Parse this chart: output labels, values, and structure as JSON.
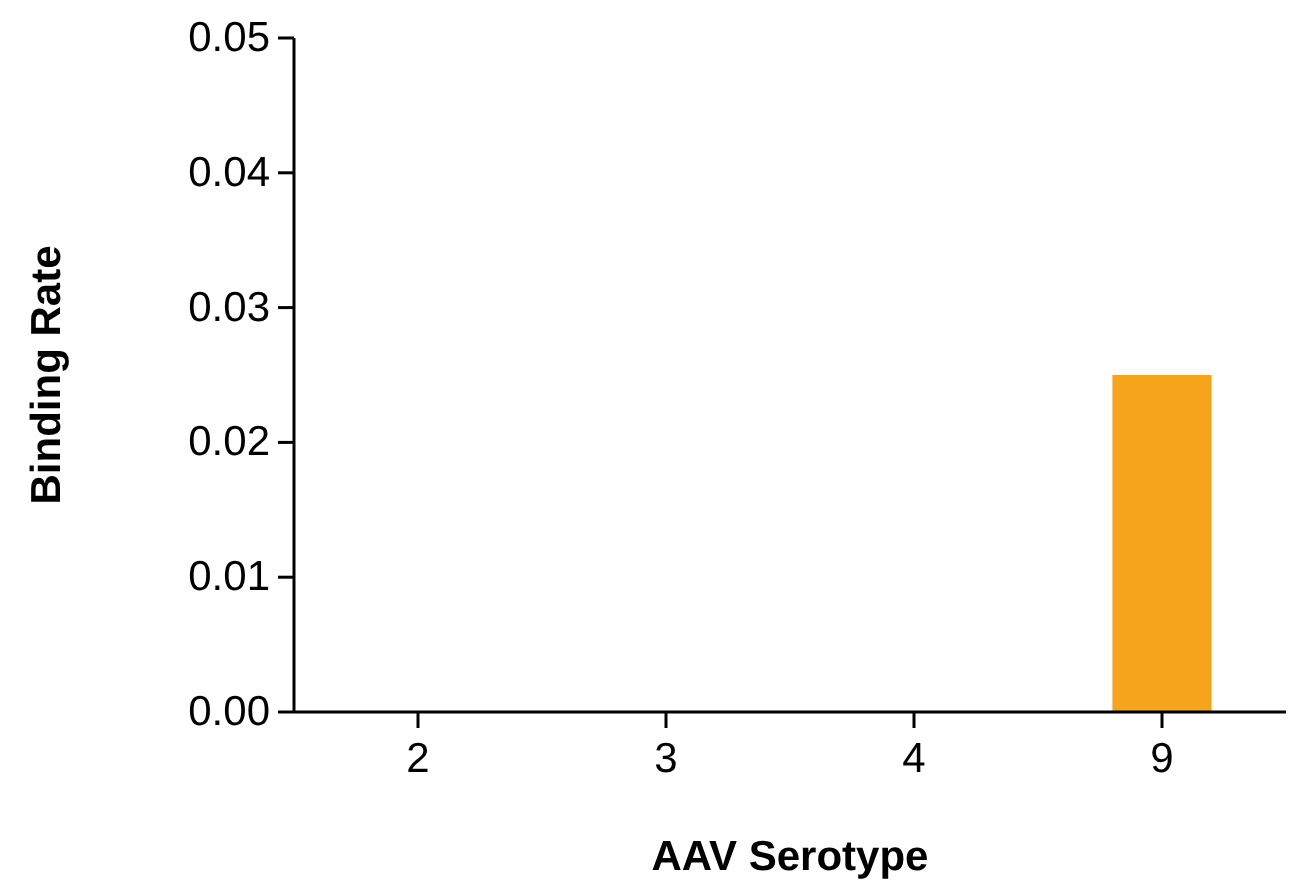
{
  "chart_data": {
    "type": "bar",
    "xlabel": "AAV Serotype",
    "ylabel": "Binding Rate",
    "categories": [
      "2",
      "3",
      "4",
      "9"
    ],
    "values": [
      0,
      0,
      0,
      0.025
    ],
    "color": "#f7a41d",
    "ylim": [
      0,
      0.05
    ],
    "yticks": [
      {
        "value": 0,
        "label": "0.00"
      },
      {
        "value": 0.01,
        "label": "0.01"
      },
      {
        "value": 0.02,
        "label": "0.02"
      },
      {
        "value": 0.03,
        "label": "0.03"
      },
      {
        "value": 0.04,
        "label": "0.04"
      },
      {
        "value": 0.05,
        "label": "0.05"
      }
    ]
  }
}
